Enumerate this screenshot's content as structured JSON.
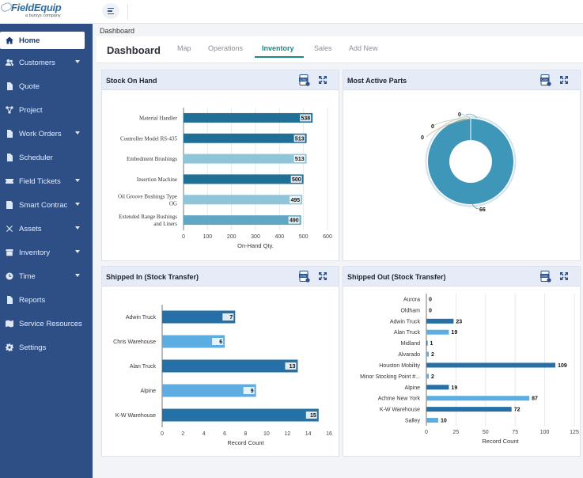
{
  "app": {
    "logo_text": "FieldEquip",
    "logo_sub": "a bursys company"
  },
  "sidebar": {
    "items": [
      {
        "label": "Home",
        "icon": "home-icon",
        "active": true,
        "caret": false
      },
      {
        "label": "Customers",
        "icon": "users-icon",
        "active": false,
        "caret": true
      },
      {
        "label": "Quote",
        "icon": "document-icon",
        "active": false,
        "caret": false
      },
      {
        "label": "Project",
        "icon": "project-icon",
        "active": false,
        "caret": false
      },
      {
        "label": "Work Orders",
        "icon": "work-order-icon",
        "active": false,
        "caret": true
      },
      {
        "label": "Scheduler",
        "icon": "calendar-icon",
        "active": false,
        "caret": false
      },
      {
        "label": "Field Tickets",
        "icon": "ticket-icon",
        "active": false,
        "caret": true
      },
      {
        "label": "Smart Contrac",
        "icon": "contract-icon",
        "active": false,
        "caret": true
      },
      {
        "label": "Assets",
        "icon": "tools-icon",
        "active": false,
        "caret": true
      },
      {
        "label": "Inventory",
        "icon": "inventory-icon",
        "active": false,
        "caret": true
      },
      {
        "label": "Time",
        "icon": "clock-icon",
        "active": false,
        "caret": true
      },
      {
        "label": "Reports",
        "icon": "report-icon",
        "active": false,
        "caret": false
      },
      {
        "label": "Service Resources",
        "icon": "map-icon",
        "active": false,
        "caret": false
      },
      {
        "label": "Settings",
        "icon": "gear-icon",
        "active": false,
        "caret": false
      }
    ]
  },
  "breadcrumb": "Dashboard",
  "page_title": "Dashboard",
  "tabs": [
    {
      "label": "Map",
      "active": false
    },
    {
      "label": "Operations",
      "active": false
    },
    {
      "label": "Inventory",
      "active": true
    },
    {
      "label": "Sales",
      "active": false
    },
    {
      "label": "Add New",
      "active": false
    }
  ],
  "panels": {
    "stock": {
      "title": "Stock On Hand"
    },
    "active_parts": {
      "title": "Most Active Parts"
    },
    "shipped_in": {
      "title": "Shipped In (Stock Transfer)"
    },
    "shipped_out": {
      "title": "Shipped Out (Stock Transfer)"
    }
  },
  "colors": {
    "sidebar": "#2d4f86",
    "accent": "#1b8a8a",
    "bar_dark": "#1f6f97",
    "bar_light": "#8ec5d8",
    "bar_blue_dark": "#2670a8",
    "bar_blue_light": "#5dade2",
    "donut": "#3e97b8"
  },
  "chart_data": [
    {
      "id": "stock",
      "type": "bar",
      "orientation": "horizontal",
      "categories": [
        "Material Handler",
        "Controller Model RS-435",
        "Embedment Brushings",
        "Insertion Machine",
        "Oil Groove Bushings Type OG",
        "Extended Range Bushings and Liners"
      ],
      "values": [
        538,
        513,
        513,
        500,
        495,
        490
      ],
      "colors": [
        "#1f6f97",
        "#1f6f97",
        "#8ec5d8",
        "#1f6f97",
        "#8ec5d8",
        "#5fa7c4"
      ],
      "xlabel": "On-Hand Qty.",
      "xlim": [
        0,
        600
      ],
      "xticks": [
        0,
        100,
        200,
        300,
        400,
        500,
        600
      ]
    },
    {
      "id": "active_parts",
      "type": "pie",
      "variant": "donut",
      "labels": [
        "0",
        "0",
        "0",
        "66"
      ],
      "values": [
        0,
        0,
        0,
        66
      ]
    },
    {
      "id": "shipped_in",
      "type": "bar",
      "orientation": "horizontal",
      "categories": [
        "Adwin Truck",
        "Chris Warehouse",
        "Alan Truck",
        "Alpine",
        "K-W Warehouse"
      ],
      "values": [
        7,
        6,
        13,
        9,
        15
      ],
      "colors": [
        "#2670a8",
        "#5dade2",
        "#2670a8",
        "#5dade2",
        "#2670a8"
      ],
      "xlabel": "Record Count",
      "xlim": [
        0,
        16
      ],
      "xticks": [
        0,
        2,
        4,
        6,
        8,
        10,
        12,
        14,
        16
      ]
    },
    {
      "id": "shipped_out",
      "type": "bar",
      "orientation": "horizontal",
      "categories": [
        "Aurora",
        "Oldham",
        "Adwin Truck",
        "Alan Truck",
        "Midland",
        "Alvarado",
        "Houston Mobility",
        "Minor Stocking Point #...",
        "Alpine",
        "Achme New York",
        "K-W Warehouse",
        "Salley"
      ],
      "values": [
        0,
        0,
        23,
        19,
        1,
        2,
        109,
        2,
        19,
        87,
        72,
        10
      ],
      "colors": [
        "#2670a8",
        "#5dade2",
        "#2670a8",
        "#5dade2",
        "#2670a8",
        "#5dade2",
        "#2670a8",
        "#5dade2",
        "#2670a8",
        "#5dade2",
        "#2670a8",
        "#5dade2"
      ],
      "xlabel": "Record Count",
      "xlim": [
        0,
        125
      ],
      "xticks": [
        0,
        25,
        50,
        75,
        100,
        125
      ]
    }
  ]
}
